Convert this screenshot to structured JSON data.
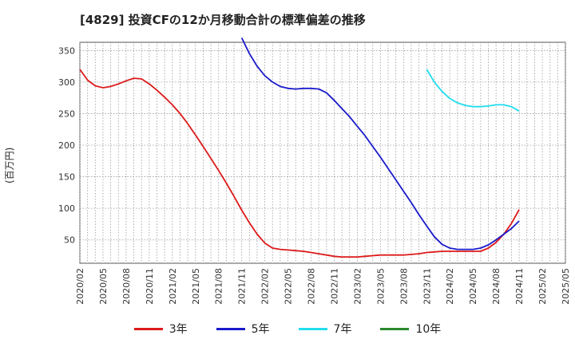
{
  "title": "[4829]  投資CFの12か月移動合計の標準偏差の推移",
  "y_unit": "(百万円)",
  "chart_data": {
    "type": "line",
    "y_ticks": [
      50,
      100,
      150,
      200,
      250,
      300,
      350
    ],
    "ylim": [
      13,
      363
    ],
    "x_ticks": [
      "2020/02",
      "2020/05",
      "2020/08",
      "2020/11",
      "2021/02",
      "2021/05",
      "2021/08",
      "2021/11",
      "2022/02",
      "2022/05",
      "2022/08",
      "2022/11",
      "2023/02",
      "2023/05",
      "2023/08",
      "2023/11",
      "2024/02",
      "2024/05",
      "2024/08",
      "2024/11",
      "2025/02",
      "2025/05"
    ],
    "grid": true,
    "legend_position": "bottom",
    "series": [
      {
        "name": "3年",
        "color": "#dd1a1a",
        "x": [
          "2020/02",
          "2020/03",
          "2020/04",
          "2020/05",
          "2020/06",
          "2020/07",
          "2020/08",
          "2020/09",
          "2020/10",
          "2020/11",
          "2020/12",
          "2021/01",
          "2021/02",
          "2021/03",
          "2021/04",
          "2021/05",
          "2021/06",
          "2021/07",
          "2021/08",
          "2021/09",
          "2021/10",
          "2021/11",
          "2021/12",
          "2022/01",
          "2022/02",
          "2022/03",
          "2022/04",
          "2022/05",
          "2022/06",
          "2022/07",
          "2022/08",
          "2022/09",
          "2022/10",
          "2022/11",
          "2022/12",
          "2023/01",
          "2023/02",
          "2023/03",
          "2023/04",
          "2023/05",
          "2023/06",
          "2023/07",
          "2023/08",
          "2023/09",
          "2023/10",
          "2023/11",
          "2023/12",
          "2024/01",
          "2024/02",
          "2024/03",
          "2024/04",
          "2024/05",
          "2024/06",
          "2024/07",
          "2024/08",
          "2024/09",
          "2024/10",
          "2024/11"
        ],
        "values": [
          320,
          303,
          294,
          291,
          293,
          297,
          302,
          306,
          305,
          297,
          287,
          276,
          264,
          250,
          234,
          216,
          198,
          179,
          160,
          140,
          119,
          97,
          77,
          59,
          45,
          37,
          35,
          34,
          33,
          32,
          30,
          28,
          26,
          24,
          23,
          23,
          23,
          24,
          25,
          26,
          26,
          26,
          26,
          27,
          28,
          30,
          31,
          32,
          32,
          32,
          32,
          32,
          32,
          37,
          46,
          59,
          76,
          98
        ]
      },
      {
        "name": "5年",
        "color": "#1a1acc",
        "x": [
          "2021/11",
          "2021/12",
          "2022/01",
          "2022/02",
          "2022/03",
          "2022/04",
          "2022/05",
          "2022/06",
          "2022/07",
          "2022/08",
          "2022/09",
          "2022/10",
          "2022/11",
          "2022/12",
          "2023/01",
          "2023/02",
          "2023/03",
          "2023/04",
          "2023/05",
          "2023/06",
          "2023/07",
          "2023/08",
          "2023/09",
          "2023/10",
          "2023/11",
          "2023/12",
          "2024/01",
          "2024/02",
          "2024/03",
          "2024/04",
          "2024/05",
          "2024/06",
          "2024/07",
          "2024/08",
          "2024/09",
          "2024/10",
          "2024/11"
        ],
        "values": [
          370,
          345,
          325,
          310,
          300,
          293,
          290,
          289,
          290,
          290,
          289,
          283,
          271,
          258,
          245,
          230,
          215,
          198,
          181,
          163,
          145,
          127,
          109,
          90,
          72,
          55,
          43,
          37,
          35,
          35,
          35,
          37,
          42,
          50,
          59,
          68,
          80
        ]
      },
      {
        "name": "7年",
        "color": "#22ddee",
        "x": [
          "2023/11",
          "2023/12",
          "2024/01",
          "2024/02",
          "2024/03",
          "2024/04",
          "2024/05",
          "2024/06",
          "2024/07",
          "2024/08",
          "2024/09",
          "2024/10",
          "2024/11"
        ],
        "values": [
          320,
          300,
          285,
          274,
          267,
          263,
          261,
          261,
          262,
          264,
          264,
          261,
          254
        ]
      },
      {
        "name": "10年",
        "color": "#2a8a2a",
        "x": [],
        "values": []
      }
    ]
  }
}
